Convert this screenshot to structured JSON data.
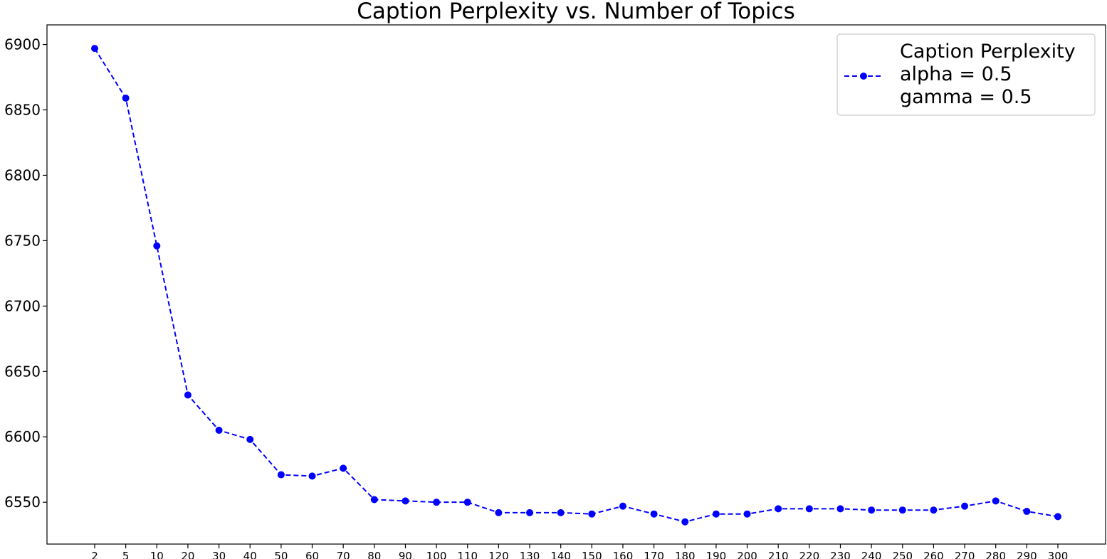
{
  "chart_data": {
    "type": "line",
    "title": "Caption Perplexity vs. Number of Topics",
    "xlabel": "",
    "ylabel": "",
    "categories": [
      "2",
      "5",
      "10",
      "20",
      "30",
      "40",
      "50",
      "60",
      "70",
      "80",
      "90",
      "100",
      "110",
      "120",
      "130",
      "140",
      "150",
      "160",
      "170",
      "180",
      "190",
      "200",
      "210",
      "220",
      "230",
      "240",
      "250",
      "260",
      "270",
      "280",
      "290",
      "300"
    ],
    "series": [
      {
        "name": "Caption Perplexity",
        "legend_lines": [
          "Caption Perplexity",
          "alpha = 0.5",
          "gamma = 0.5"
        ],
        "color": "#0000ff",
        "line_style": "dashed",
        "marker": "circle",
        "values": [
          6897,
          6859,
          6746,
          6632,
          6605,
          6598,
          6571,
          6570,
          6576,
          6552,
          6551,
          6550,
          6550,
          6542,
          6542,
          6542,
          6541,
          6547,
          6541,
          6535,
          6541,
          6541,
          6545,
          6545,
          6545,
          6544,
          6544,
          6544,
          6547,
          6551,
          6543,
          6539
        ]
      }
    ],
    "ylim": [
      6518,
      6915
    ],
    "yticks": [
      6550,
      6600,
      6650,
      6700,
      6750,
      6800,
      6850,
      6900
    ],
    "grid": false,
    "legend_position": "top-right"
  }
}
